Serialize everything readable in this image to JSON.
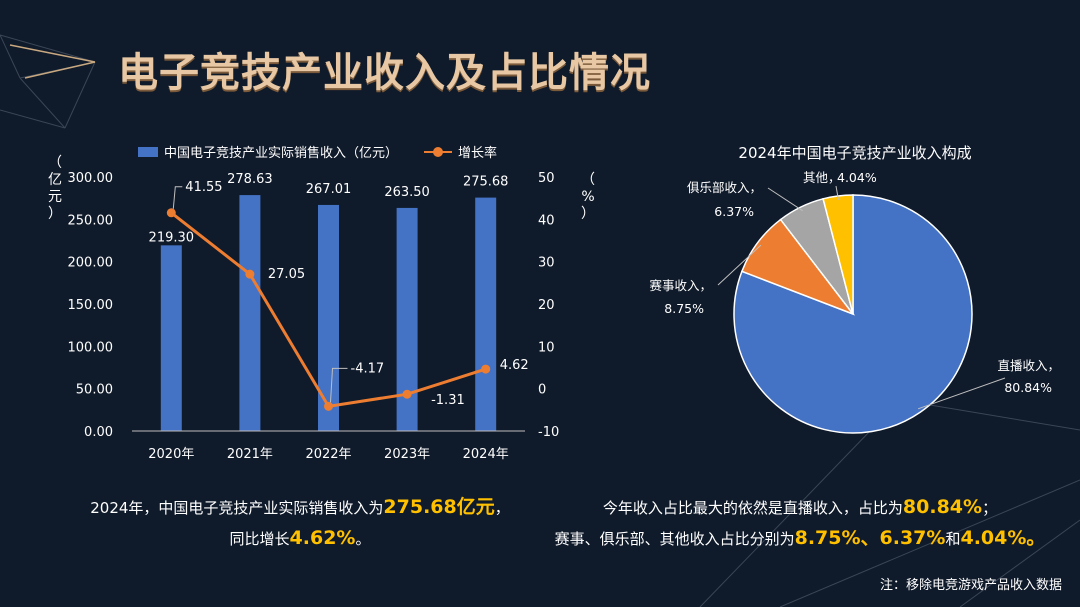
{
  "title": "电子竞技产业收入及占比情况",
  "legend": {
    "bar_label": "中国电子竞技产业实际销售收入（亿元）",
    "line_label": "增长率"
  },
  "left_axis_label": [
    "（",
    "亿",
    "元",
    "）"
  ],
  "right_axis_label": [
    "（",
    "%",
    "）"
  ],
  "chart_data": [
    {
      "type": "bar",
      "categories": [
        "2020年",
        "2021年",
        "2022年",
        "2023年",
        "2024年"
      ],
      "series": [
        {
          "name": "中国电子竞技产业实际销售收入（亿元）",
          "type": "bar",
          "axis": "left",
          "values": [
            219.3,
            278.63,
            267.01,
            263.5,
            275.68
          ],
          "labels": [
            "219.30",
            "278.63",
            "267.01",
            "263.50",
            "275.68"
          ],
          "color": "#4472c4"
        },
        {
          "name": "增长率",
          "type": "line",
          "axis": "right",
          "values": [
            41.55,
            27.05,
            -4.17,
            -1.31,
            4.62
          ],
          "labels": [
            "41.55",
            "27.05",
            "-4.17",
            "-1.31",
            "4.62"
          ],
          "color": "#ed7d31"
        }
      ],
      "y_left": {
        "min": 0,
        "max": 300,
        "ticks": [
          "0.00",
          "50.00",
          "100.00",
          "150.00",
          "200.00",
          "250.00",
          "300.00"
        ]
      },
      "y_right": {
        "min": -10,
        "max": 50,
        "ticks": [
          "-10",
          "0",
          "10",
          "20",
          "30",
          "40",
          "50"
        ]
      },
      "grid": false,
      "legend_position": "top"
    },
    {
      "type": "pie",
      "title": "2024年中国电子竞技产业收入构成",
      "slices": [
        {
          "name": "直播收入",
          "value": 80.84,
          "label": "80.84%",
          "color": "#4472c4"
        },
        {
          "name": "赛事收入",
          "value": 8.75,
          "label": "8.75%",
          "color": "#ed7d31"
        },
        {
          "name": "俱乐部收入",
          "value": 6.37,
          "label": "6.37%",
          "color": "#a5a5a5"
        },
        {
          "name": "其他",
          "value": 4.04,
          "label": "4.04%",
          "color": "#ffc000"
        }
      ]
    }
  ],
  "summary_left": {
    "line1_pre": "2024年，中国电子竞技产业实际销售收入为",
    "line1_hl": "275.68亿元",
    "line1_post": "，",
    "line2_pre": "同比增长",
    "line2_hl": "4.62%",
    "line2_post": "。"
  },
  "summary_right": {
    "line1_pre": "今年收入占比最大的依然是直播收入，占比为",
    "line1_hl": "80.84%",
    "line1_post": "；",
    "line2_pre": "赛事、俱乐部、其他收入占比分别为",
    "line2_hl1": "8.75%、6.37%",
    "line2_mid": "和",
    "line2_hl2": "4.04%。"
  },
  "note": "注：移除电竞游戏产品收入数据",
  "colors": {
    "title": "#e8c8a4",
    "highlight": "#ffc000",
    "bar": "#4472c4",
    "line": "#ed7d31"
  }
}
